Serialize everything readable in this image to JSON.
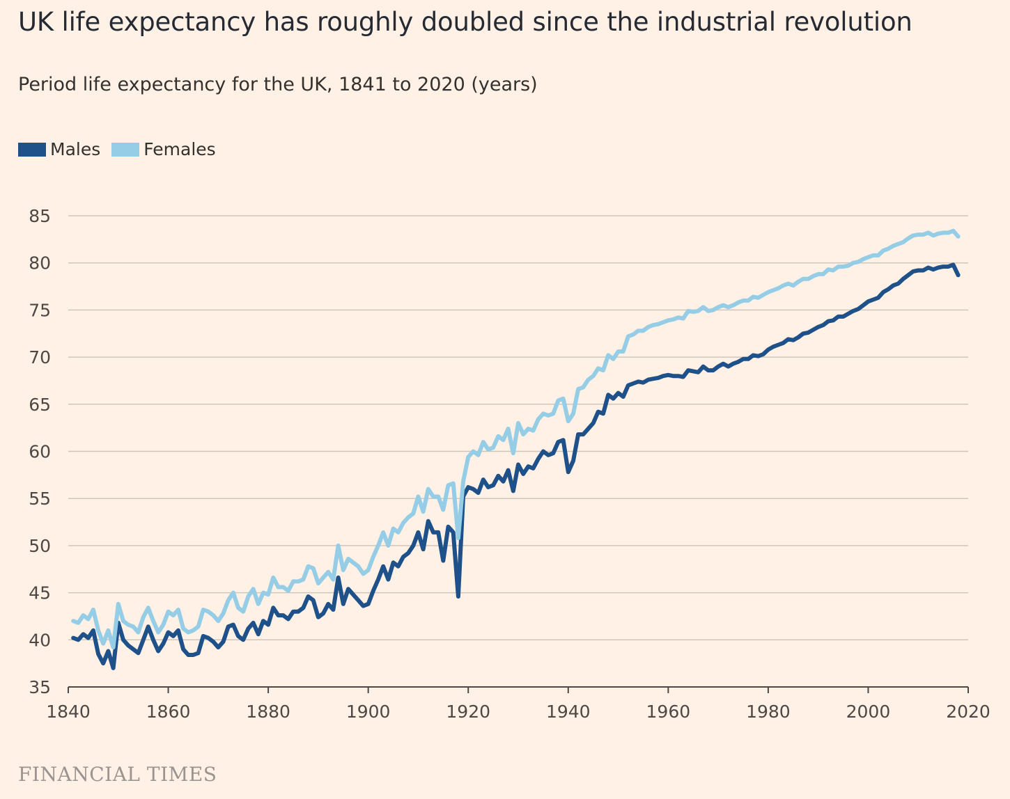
{
  "chart_data": {
    "type": "line",
    "title": "UK life expectancy has roughly doubled since the industrial revolution",
    "subtitle": "Period life expectancy for the UK, 1841 to 2020 (years)",
    "xlabel": "",
    "ylabel": "",
    "xlim": [
      1840,
      2020
    ],
    "ylim": [
      35,
      85
    ],
    "x_ticks": [
      "1840",
      "1860",
      "1880",
      "1900",
      "1920",
      "1940",
      "1960",
      "1980",
      "2000",
      "2020"
    ],
    "y_ticks": [
      "35",
      "40",
      "45",
      "50",
      "55",
      "60",
      "65",
      "70",
      "75",
      "80",
      "85"
    ],
    "grid": true,
    "legend_position": "top-left",
    "years_start": 1841,
    "series": [
      {
        "name": "Males",
        "color": "#1e5089",
        "values": [
          40.2,
          40.0,
          40.6,
          40.2,
          41.0,
          38.5,
          37.5,
          38.8,
          37.0,
          41.8,
          40.0,
          39.4,
          39.0,
          38.6,
          40.0,
          41.4,
          40.0,
          38.8,
          39.6,
          40.8,
          40.4,
          41.0,
          39.0,
          38.4,
          38.4,
          38.6,
          40.4,
          40.2,
          39.8,
          39.2,
          39.8,
          41.4,
          41.6,
          40.4,
          40.0,
          41.2,
          41.8,
          40.6,
          42.0,
          41.6,
          43.4,
          42.6,
          42.6,
          42.2,
          43.0,
          43.0,
          43.4,
          44.6,
          44.2,
          42.4,
          42.8,
          43.8,
          43.2,
          46.6,
          43.8,
          45.4,
          44.8,
          44.2,
          43.6,
          43.8,
          45.2,
          46.4,
          47.8,
          46.4,
          48.2,
          47.8,
          48.8,
          49.2,
          50.0,
          51.4,
          49.6,
          52.6,
          51.4,
          51.4,
          48.4,
          52.0,
          51.4,
          44.6,
          55.2,
          56.2,
          56.0,
          55.6,
          57.0,
          56.2,
          56.4,
          57.4,
          56.8,
          58.0,
          55.8,
          58.6,
          57.6,
          58.4,
          58.2,
          59.2,
          60.0,
          59.6,
          59.8,
          61.0,
          61.2,
          57.8,
          59.0,
          61.8,
          61.8,
          62.4,
          63.0,
          64.2,
          64.0,
          66.0,
          65.6,
          66.2,
          65.8,
          67.0,
          67.2,
          67.4,
          67.3,
          67.6,
          67.7,
          67.8,
          68.0,
          68.1,
          68.0,
          68.0,
          67.9,
          68.6,
          68.5,
          68.4,
          69.0,
          68.6,
          68.6,
          69.0,
          69.3,
          69.0,
          69.3,
          69.5,
          69.8,
          69.8,
          70.2,
          70.1,
          70.3,
          70.8,
          71.1,
          71.3,
          71.5,
          71.9,
          71.8,
          72.1,
          72.5,
          72.6,
          72.9,
          73.2,
          73.4,
          73.8,
          73.9,
          74.3,
          74.3,
          74.6,
          74.9,
          75.1,
          75.5,
          75.9,
          76.1,
          76.3,
          76.9,
          77.2,
          77.6,
          77.8,
          78.3,
          78.7,
          79.1,
          79.2,
          79.2,
          79.5,
          79.3,
          79.5,
          79.6,
          79.6,
          79.8,
          78.7
        ]
      },
      {
        "name": "Females",
        "color": "#96cde6",
        "values": [
          42.0,
          41.8,
          42.6,
          42.2,
          43.2,
          41.0,
          39.6,
          41.0,
          39.2,
          43.8,
          42.0,
          41.6,
          41.4,
          40.8,
          42.4,
          43.4,
          42.0,
          40.8,
          41.6,
          43.0,
          42.6,
          43.2,
          41.2,
          40.8,
          41.0,
          41.4,
          43.2,
          43.0,
          42.6,
          42.0,
          42.8,
          44.2,
          45.0,
          43.4,
          43.0,
          44.6,
          45.4,
          43.8,
          45.0,
          44.8,
          46.6,
          45.6,
          45.6,
          45.2,
          46.2,
          46.2,
          46.4,
          47.8,
          47.6,
          46.0,
          46.6,
          47.2,
          46.4,
          50.0,
          47.4,
          48.6,
          48.2,
          47.8,
          47.0,
          47.4,
          48.8,
          50.0,
          51.4,
          50.0,
          51.8,
          51.4,
          52.4,
          53.0,
          53.4,
          55.2,
          53.6,
          56.0,
          55.2,
          55.2,
          53.8,
          56.4,
          56.6,
          50.8,
          56.8,
          59.4,
          60.0,
          59.6,
          61.0,
          60.2,
          60.4,
          61.6,
          61.2,
          62.4,
          59.8,
          63.0,
          61.8,
          62.4,
          62.2,
          63.4,
          64.0,
          63.8,
          64.0,
          65.4,
          65.6,
          63.2,
          64.0,
          66.6,
          66.8,
          67.6,
          68.0,
          68.8,
          68.6,
          70.2,
          69.8,
          70.6,
          70.6,
          72.2,
          72.4,
          72.8,
          72.8,
          73.2,
          73.4,
          73.5,
          73.7,
          73.9,
          74.0,
          74.2,
          74.1,
          74.9,
          74.8,
          74.9,
          75.3,
          74.9,
          75.0,
          75.3,
          75.5,
          75.3,
          75.5,
          75.8,
          76.0,
          76.0,
          76.4,
          76.3,
          76.6,
          76.9,
          77.1,
          77.3,
          77.6,
          77.8,
          77.6,
          78.0,
          78.3,
          78.3,
          78.6,
          78.8,
          78.8,
          79.3,
          79.2,
          79.6,
          79.6,
          79.7,
          80.0,
          80.1,
          80.4,
          80.6,
          80.8,
          80.8,
          81.3,
          81.5,
          81.8,
          82.0,
          82.2,
          82.6,
          82.9,
          83.0,
          83.0,
          83.2,
          82.9,
          83.1,
          83.2,
          83.2,
          83.4,
          82.8
        ]
      }
    ]
  },
  "footer": {
    "brand": "FINANCIAL TIMES"
  }
}
